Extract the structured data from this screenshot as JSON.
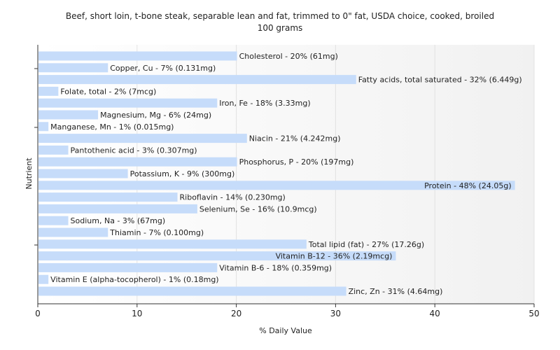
{
  "chart_data": {
    "type": "bar",
    "orientation": "horizontal",
    "title": "Beef, short loin, t-bone steak, separable lean and fat, trimmed to 0\" fat, USDA choice, cooked, broiled",
    "subtitle": "100 grams",
    "xlabel": "% Daily Value",
    "ylabel": "Nutrient",
    "xlim": [
      0,
      50
    ],
    "xticks": [
      0,
      10,
      20,
      30,
      40,
      50
    ],
    "grid": "vertical",
    "bar_color": "#c6dcfa",
    "categories": [
      "Cholesterol",
      "Copper, Cu",
      "Fatty acids, total saturated",
      "Folate, total",
      "Iron, Fe",
      "Magnesium, Mg",
      "Manganese, Mn",
      "Niacin",
      "Pantothenic acid",
      "Phosphorus, P",
      "Potassium, K",
      "Protein",
      "Riboflavin",
      "Selenium, Se",
      "Sodium, Na",
      "Thiamin",
      "Total lipid (fat)",
      "Vitamin B-12",
      "Vitamin B-6",
      "Vitamin E (alpha-tocopherol)",
      "Zinc, Zn"
    ],
    "values": [
      20,
      7,
      32,
      2,
      18,
      6,
      1,
      21,
      3,
      20,
      9,
      48,
      14,
      16,
      3,
      7,
      27,
      36,
      18,
      1,
      31
    ],
    "labels": [
      "Cholesterol - 20% (61mg)",
      "Copper, Cu - 7% (0.131mg)",
      "Fatty acids, total saturated - 32% (6.449g)",
      "Folate, total - 2% (7mcg)",
      "Iron, Fe - 18% (3.33mg)",
      "Magnesium, Mg - 6% (24mg)",
      "Manganese, Mn - 1% (0.015mg)",
      "Niacin - 21% (4.242mg)",
      "Pantothenic acid - 3% (0.307mg)",
      "Phosphorus, P - 20% (197mg)",
      "Potassium, K - 9% (300mg)",
      "Protein - 48% (24.05g)",
      "Riboflavin - 14% (0.230mg)",
      "Selenium, Se - 16% (10.9mcg)",
      "Sodium, Na - 3% (67mg)",
      "Thiamin - 7% (0.100mg)",
      "Total lipid (fat) - 27% (17.26g)",
      "Vitamin B-12 - 36% (2.19mcg)",
      "Vitamin B-6 - 18% (0.359mg)",
      "Vitamin E (alpha-tocopherol) - 1% (0.18mg)",
      "Zinc, Zn - 31% (4.64mg)"
    ]
  }
}
